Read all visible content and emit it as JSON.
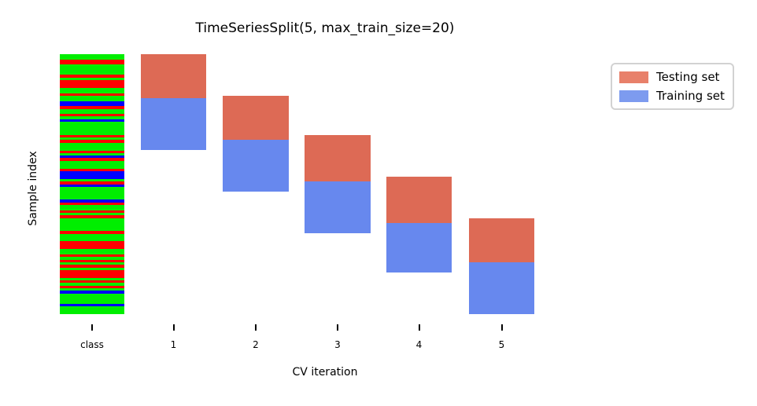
{
  "title": "TimeSeriesSplit(5, max_train_size=20)",
  "chart_data": {
    "type": "bar",
    "title": "TimeSeriesSplit(5, max_train_size=20)",
    "xlabel": "CV iteration",
    "ylabel": "Sample index",
    "categories": [
      "class",
      "1",
      "2",
      "3",
      "4",
      "5"
    ],
    "n_samples": 100,
    "grid": false,
    "legend": {
      "position": "outside-upper-right",
      "entries": [
        {
          "label": "Testing set",
          "color": "#e8806a"
        },
        {
          "label": "Training set",
          "color": "#7d9bef"
        }
      ]
    },
    "colors": {
      "testing_block": "#dd6a55",
      "training_block": "#6788ee"
    },
    "iterations": [
      {
        "label": "1",
        "test_samples": [
          0,
          17
        ],
        "train_samples": [
          17,
          37
        ]
      },
      {
        "label": "2",
        "test_samples": [
          16,
          33
        ],
        "train_samples": [
          33,
          53
        ]
      },
      {
        "label": "3",
        "test_samples": [
          31,
          49
        ],
        "train_samples": [
          49,
          69
        ]
      },
      {
        "label": "4",
        "test_samples": [
          47,
          65
        ],
        "train_samples": [
          65,
          84
        ]
      },
      {
        "label": "5",
        "test_samples": [
          63,
          80
        ],
        "train_samples": [
          80,
          100
        ]
      }
    ],
    "class_column": {
      "label": "class",
      "palette": {
        "r": "#ff0000",
        "g": "#00ee00",
        "b": "#0000ff"
      },
      "runs": [
        [
          "g",
          2
        ],
        [
          "r",
          2
        ],
        [
          "g",
          4
        ],
        [
          "r",
          1
        ],
        [
          "g",
          1
        ],
        [
          "r",
          3
        ],
        [
          "g",
          2
        ],
        [
          "r",
          1
        ],
        [
          "g",
          2
        ],
        [
          "b",
          2
        ],
        [
          "r",
          1
        ],
        [
          "g",
          2
        ],
        [
          "r",
          1
        ],
        [
          "g",
          1
        ],
        [
          "b",
          1
        ],
        [
          "g",
          5
        ],
        [
          "r",
          1
        ],
        [
          "g",
          1
        ],
        [
          "r",
          1
        ],
        [
          "g",
          3
        ],
        [
          "r",
          1
        ],
        [
          "g",
          1
        ],
        [
          "b",
          1
        ],
        [
          "r",
          1
        ],
        [
          "g",
          3
        ],
        [
          "r",
          1
        ],
        [
          "b",
          3
        ],
        [
          "g",
          1
        ],
        [
          "r",
          1
        ],
        [
          "b",
          1
        ],
        [
          "g",
          5
        ],
        [
          "b",
          1
        ],
        [
          "r",
          1
        ],
        [
          "g",
          2
        ],
        [
          "r",
          1
        ],
        [
          "g",
          1
        ],
        [
          "r",
          1
        ],
        [
          "g",
          5
        ],
        [
          "r",
          1
        ],
        [
          "g",
          3
        ],
        [
          "r",
          3
        ],
        [
          "g",
          2
        ],
        [
          "r",
          1
        ],
        [
          "g",
          1
        ],
        [
          "r",
          1
        ],
        [
          "g",
          1
        ],
        [
          "r",
          1
        ],
        [
          "g",
          1
        ],
        [
          "r",
          3
        ],
        [
          "g",
          1
        ],
        [
          "r",
          1
        ],
        [
          "g",
          1
        ],
        [
          "r",
          1
        ],
        [
          "g",
          1
        ],
        [
          "b",
          1
        ],
        [
          "g",
          4
        ],
        [
          "b",
          1
        ],
        [
          "g",
          3
        ]
      ]
    }
  }
}
